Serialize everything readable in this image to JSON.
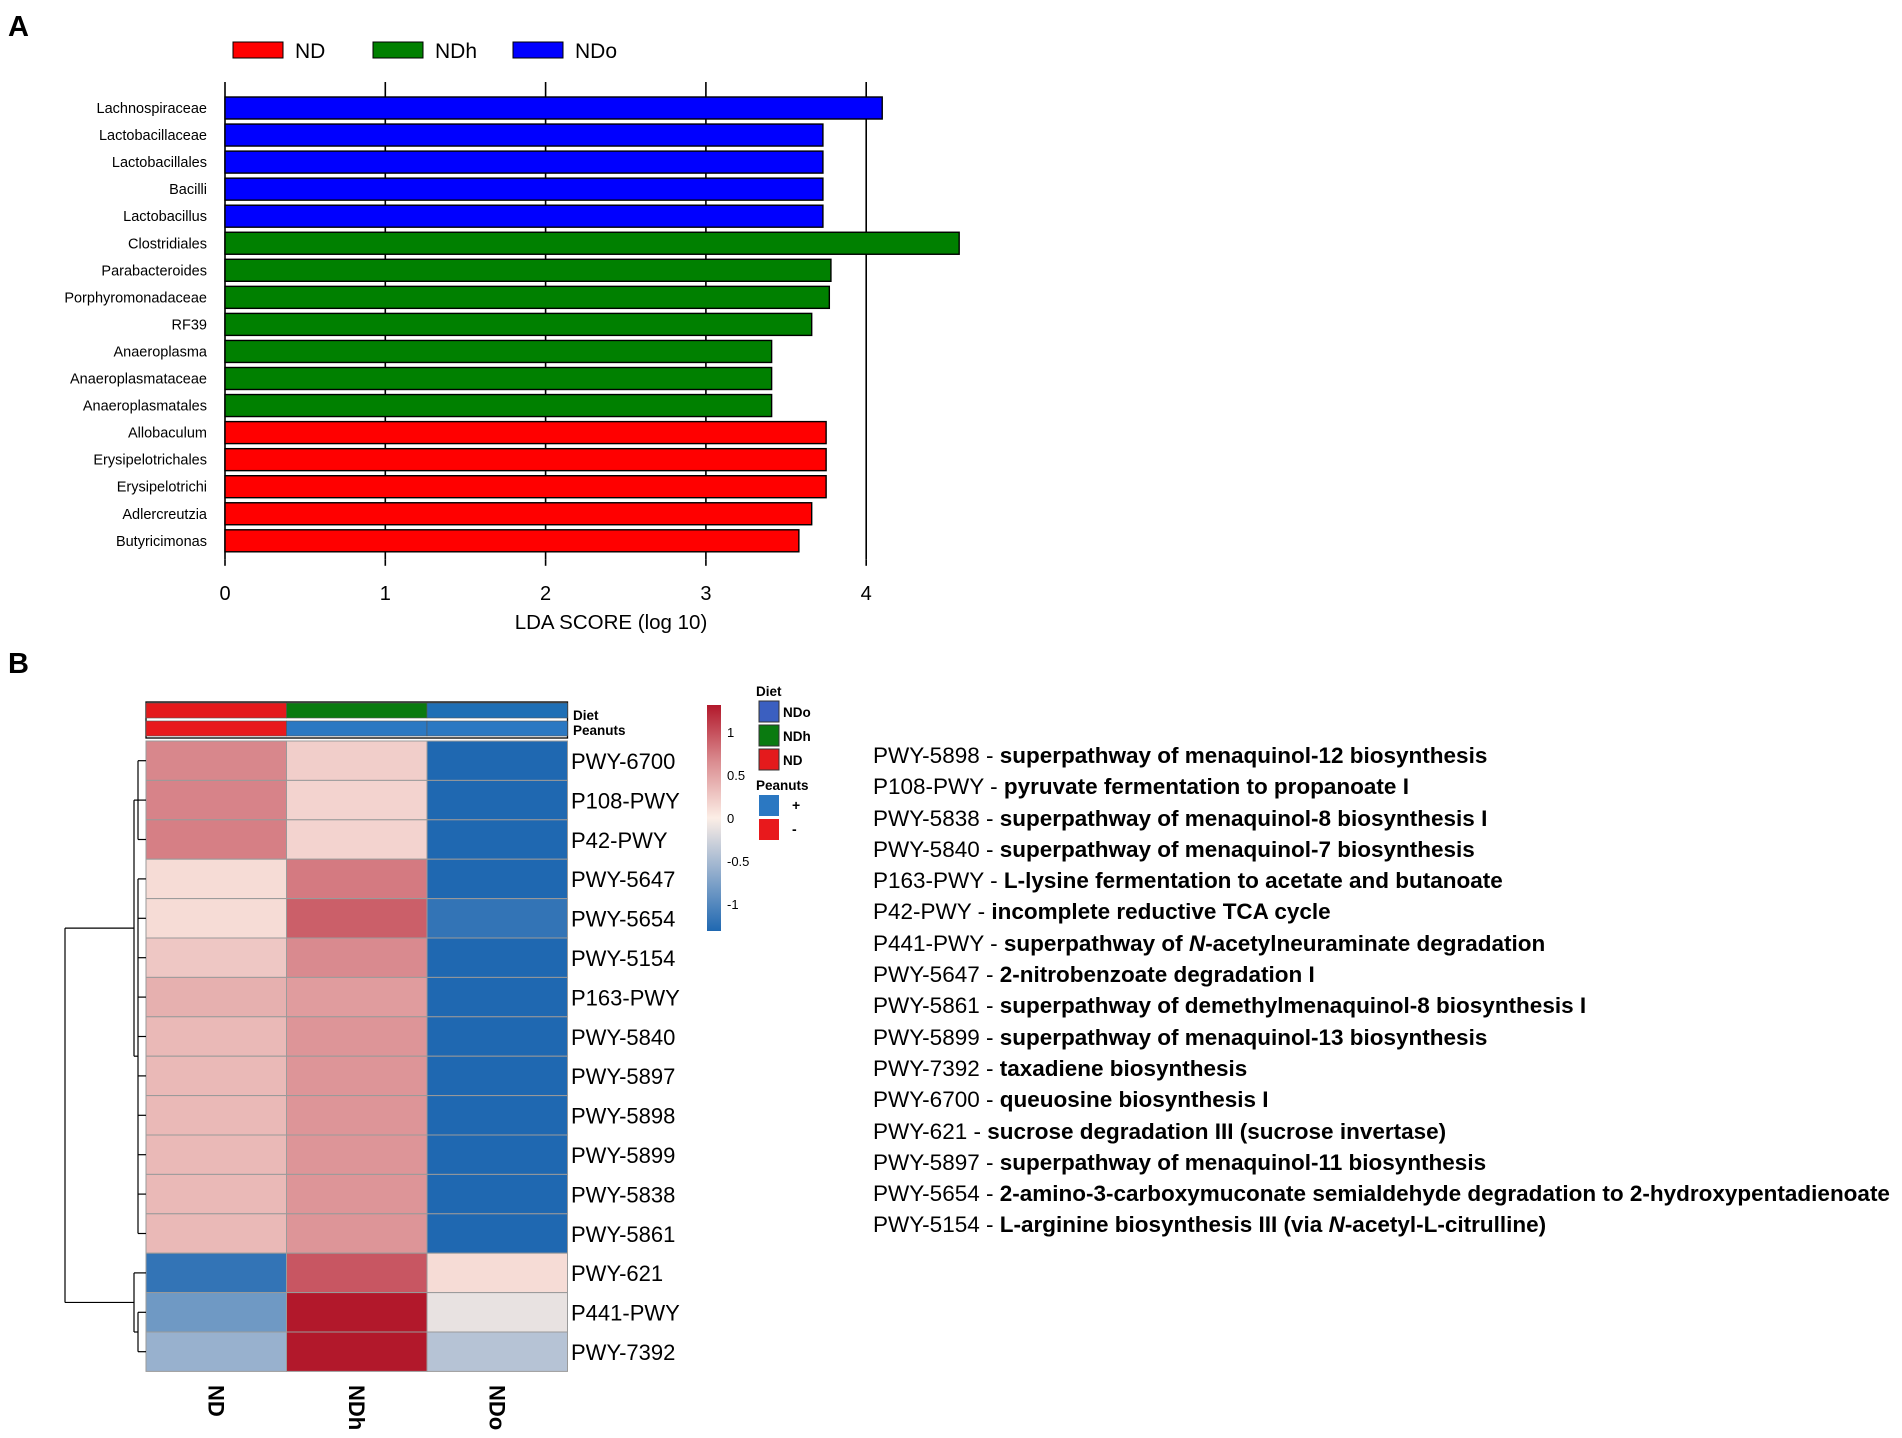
{
  "panel_labels": {
    "a": "A",
    "b": "B"
  },
  "colors": {
    "ND": "#ff0000",
    "NDh": "#008000",
    "NDo": "#0000ff",
    "heat_ND": "#e41a1c",
    "heat_NDh": "#0a7a10",
    "heat_NDo": "#1f6fb5",
    "peanuts_plus": "#2b78c2",
    "peanuts_minus": "#e8191c"
  },
  "chart_data": [
    {
      "type": "bar",
      "orientation": "horizontal",
      "legend": [
        {
          "name": "ND",
          "color": "#ff0000"
        },
        {
          "name": "NDh",
          "color": "#008000"
        },
        {
          "name": "NDo",
          "color": "#0000ff"
        }
      ],
      "legend_position": "top",
      "xlabel": "LDA SCORE (log 10)",
      "xlim": [
        0,
        4.6
      ],
      "xticks": [
        "0",
        "1",
        "2",
        "3",
        "4"
      ],
      "grid": "vertical",
      "bars": [
        {
          "label": "Lachnospiraceae",
          "value": 4.1,
          "group": "NDo"
        },
        {
          "label": "Lactobacillaceae",
          "value": 3.73,
          "group": "NDo"
        },
        {
          "label": "Lactobacillales",
          "value": 3.73,
          "group": "NDo"
        },
        {
          "label": "Bacilli",
          "value": 3.73,
          "group": "NDo"
        },
        {
          "label": "Lactobacillus",
          "value": 3.73,
          "group": "NDo"
        },
        {
          "label": "Clostridiales",
          "value": 4.58,
          "group": "NDh"
        },
        {
          "label": "Parabacteroides",
          "value": 3.78,
          "group": "NDh"
        },
        {
          "label": "Porphyromonadaceae",
          "value": 3.77,
          "group": "NDh"
        },
        {
          "label": "RF39",
          "value": 3.66,
          "group": "NDh"
        },
        {
          "label": "Anaeroplasma",
          "value": 3.41,
          "group": "NDh"
        },
        {
          "label": "Anaeroplasmataceae",
          "value": 3.41,
          "group": "NDh"
        },
        {
          "label": "Anaeroplasmatales",
          "value": 3.41,
          "group": "NDh"
        },
        {
          "label": "Allobaculum",
          "value": 3.75,
          "group": "ND"
        },
        {
          "label": "Erysipelotrichales",
          "value": 3.75,
          "group": "ND"
        },
        {
          "label": "Erysipelotrichi",
          "value": 3.75,
          "group": "ND"
        },
        {
          "label": "Adlercreutzia",
          "value": 3.66,
          "group": "ND"
        },
        {
          "label": "Butyricimonas",
          "value": 3.58,
          "group": "ND"
        }
      ]
    },
    {
      "type": "heatmap",
      "columns": [
        "ND",
        "NDh",
        "NDo"
      ],
      "annotation_labels": {
        "diet": "Diet",
        "peanuts": "Peanuts"
      },
      "diet_row": [
        "ND",
        "NDh",
        "NDo"
      ],
      "peanuts_row": [
        "-",
        "+",
        "+"
      ],
      "rows": [
        {
          "label": "PWY-6700",
          "values": [
            0.58,
            0.18,
            -1.1
          ]
        },
        {
          "label": "P108-PWY",
          "values": [
            0.6,
            0.15,
            -1.1
          ]
        },
        {
          "label": "P42-PWY",
          "values": [
            0.62,
            0.15,
            -1.1
          ]
        },
        {
          "label": "PWY-5647",
          "values": [
            0.1,
            0.65,
            -1.1
          ]
        },
        {
          "label": "PWY-5654",
          "values": [
            0.1,
            0.8,
            -1.0
          ]
        },
        {
          "label": "PWY-5154",
          "values": [
            0.22,
            0.56,
            -1.1
          ]
        },
        {
          "label": "P163-PWY",
          "values": [
            0.35,
            0.46,
            -1.1
          ]
        },
        {
          "label": "PWY-5840",
          "values": [
            0.3,
            0.5,
            -1.1
          ]
        },
        {
          "label": "PWY-5897",
          "values": [
            0.3,
            0.5,
            -1.1
          ]
        },
        {
          "label": "PWY-5898",
          "values": [
            0.3,
            0.5,
            -1.1
          ]
        },
        {
          "label": "PWY-5899",
          "values": [
            0.3,
            0.5,
            -1.1
          ]
        },
        {
          "label": "PWY-5838",
          "values": [
            0.3,
            0.5,
            -1.1
          ]
        },
        {
          "label": "PWY-5861",
          "values": [
            0.3,
            0.5,
            -1.1
          ]
        },
        {
          "label": "PWY-621",
          "values": [
            -1.0,
            0.85,
            0.1
          ]
        },
        {
          "label": "P441-PWY",
          "values": [
            -0.7,
            1.2,
            -0.1
          ]
        },
        {
          "label": "PWY-7392",
          "values": [
            -0.5,
            1.2,
            -0.35
          ]
        }
      ],
      "colorbar": {
        "range": [
          -1,
          1
        ],
        "ticks": [
          "1",
          "0.5",
          "0",
          "-0.5",
          "-1"
        ]
      },
      "legend": {
        "diet_title": "Diet",
        "diet_items": [
          {
            "name": "NDo",
            "color": "#3b5fc0"
          },
          {
            "name": "NDh",
            "color": "#0a7a10"
          },
          {
            "name": "ND",
            "color": "#e41a1c"
          }
        ],
        "peanuts_title": "Peanuts",
        "peanuts_items": [
          {
            "name": "+",
            "color": "#2b78c2"
          },
          {
            "name": "-",
            "color": "#e8191c"
          }
        ]
      }
    }
  ],
  "pathways": [
    {
      "code": "PWY-5898 - ",
      "parts": [
        {
          "t": "superpathway of menaquinol-12 biosynthesis"
        }
      ]
    },
    {
      "code": "P108-PWY - ",
      "parts": [
        {
          "t": "pyruvate fermentation to propanoate I"
        }
      ]
    },
    {
      "code": "PWY-5838 - ",
      "parts": [
        {
          "t": "superpathway of menaquinol-8 biosynthesis I"
        }
      ]
    },
    {
      "code": "PWY-5840 - ",
      "parts": [
        {
          "t": "superpathway of menaquinol-7 biosynthesis"
        }
      ]
    },
    {
      "code": "P163-PWY - ",
      "parts": [
        {
          "t": "L-lysine fermentation to acetate and butanoate"
        }
      ]
    },
    {
      "code": "P42-PWY - ",
      "parts": [
        {
          "t": "incomplete reductive TCA cycle"
        }
      ]
    },
    {
      "code": "P441-PWY - ",
      "parts": [
        {
          "t": "superpathway of "
        },
        {
          "t": "N",
          "i": true
        },
        {
          "t": "-acetylneuraminate degradation"
        }
      ]
    },
    {
      "code": "PWY-5647 - ",
      "parts": [
        {
          "t": "2-nitrobenzoate degradation I"
        }
      ]
    },
    {
      "code": "PWY-5861 - ",
      "parts": [
        {
          "t": "superpathway of demethylmenaquinol-8 biosynthesis I"
        }
      ]
    },
    {
      "code": "PWY-5899 - ",
      "parts": [
        {
          "t": "superpathway of menaquinol-13 biosynthesis"
        }
      ]
    },
    {
      "code": "PWY-7392 - ",
      "parts": [
        {
          "t": "taxadiene biosynthesis"
        }
      ]
    },
    {
      "code": "PWY-6700 - ",
      "parts": [
        {
          "t": "queuosine biosynthesis I"
        }
      ]
    },
    {
      "code": "PWY-621 - ",
      "parts": [
        {
          "t": "sucrose degradation III (sucrose invertase)"
        }
      ]
    },
    {
      "code": "PWY-5897 - ",
      "parts": [
        {
          "t": "superpathway of menaquinol-11 biosynthesis"
        }
      ]
    },
    {
      "code": "PWY-5654 - ",
      "parts": [
        {
          "t": "2-amino-3-carboxymuconate semialdehyde degradation to 2-hydroxypentadienoate"
        }
      ]
    },
    {
      "code": "PWY-5154 - ",
      "parts": [
        {
          "t": "L-arginine biosynthesis III (via "
        },
        {
          "t": "N",
          "i": true
        },
        {
          "t": "-acetyl-L-citrulline)"
        }
      ]
    }
  ]
}
